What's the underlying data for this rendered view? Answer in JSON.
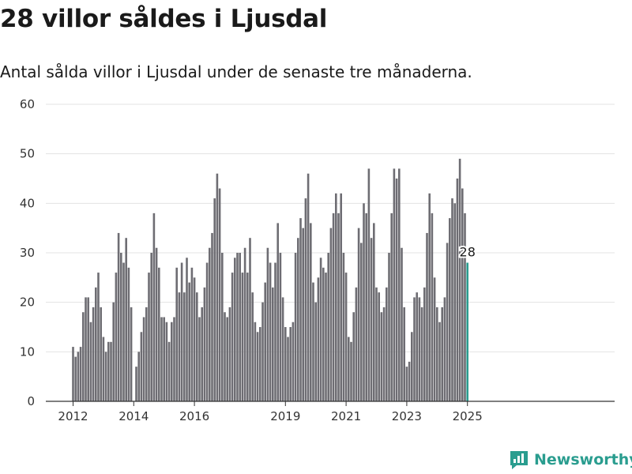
{
  "title": "28 villor såldes i Ljusdal",
  "subtitle": "Antal sålda villor i Ljusdal under de senaste tre månaderna.",
  "brand": {
    "name": "Newsworthy",
    "icon": "newsworthy-logo-icon",
    "color": "#2a9d8f"
  },
  "colors": {
    "bar": "#6e6d73",
    "highlight": "#2a9d8f",
    "grid": "#e3e3e3",
    "axis": "#333333"
  },
  "chart_data": {
    "type": "bar",
    "title": "Antal sålda villor i Ljusdal under de senaste tre månaderna.",
    "xlabel": "",
    "ylabel": "",
    "ylim": [
      0,
      60
    ],
    "y_ticks": [
      0,
      10,
      20,
      30,
      40,
      50,
      60
    ],
    "x_tick_labels": [
      "2012",
      "2014",
      "2016",
      "2019",
      "2021",
      "2023",
      "2025"
    ],
    "x_tick_indices": [
      0,
      24,
      48,
      84,
      108,
      132,
      156
    ],
    "grid": true,
    "legend": "none",
    "period": "rolling three-month window, monthly from 2012-01 to 2025-01",
    "values": [
      11,
      9,
      10,
      11,
      18,
      21,
      21,
      16,
      19,
      23,
      26,
      19,
      13,
      10,
      12,
      12,
      20,
      26,
      34,
      30,
      28,
      33,
      27,
      19,
      0,
      7,
      10,
      14,
      17,
      19,
      26,
      30,
      38,
      31,
      27,
      17,
      17,
      16,
      12,
      16,
      17,
      27,
      22,
      28,
      22,
      29,
      24,
      27,
      25,
      22,
      17,
      19,
      23,
      28,
      31,
      34,
      41,
      46,
      43,
      30,
      18,
      17,
      19,
      26,
      29,
      30,
      30,
      26,
      31,
      26,
      33,
      22,
      16,
      14,
      15,
      20,
      24,
      31,
      28,
      23,
      28,
      36,
      30,
      21,
      15,
      13,
      15,
      16,
      30,
      33,
      37,
      35,
      41,
      46,
      36,
      24,
      20,
      25,
      29,
      27,
      26,
      30,
      35,
      38,
      42,
      38,
      42,
      30,
      26,
      13,
      12,
      18,
      23,
      35,
      32,
      40,
      38,
      47,
      33,
      36,
      23,
      22,
      18,
      19,
      23,
      30,
      38,
      47,
      45,
      47,
      31,
      19,
      7,
      8,
      14,
      21,
      22,
      21,
      19,
      23,
      34,
      42,
      38,
      25,
      19,
      16,
      19,
      21,
      32,
      37,
      41,
      40,
      45,
      49,
      43,
      38,
      28
    ],
    "highlight": {
      "index": 156,
      "value": 28,
      "label": "28"
    }
  }
}
